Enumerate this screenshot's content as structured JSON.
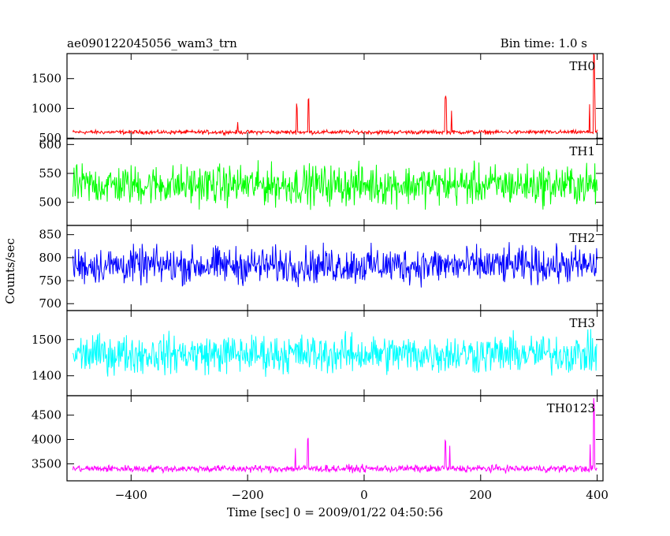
{
  "header": {
    "title": "ae090122045056_wam3_trn",
    "bin_time": "Bin time: 1.0 s"
  },
  "chart_data": {
    "type": "line",
    "xlabel": "Time [sec] 0 = 2009/01/22 04:50:56",
    "ylabel": "Counts/sec",
    "xlim": [
      -510,
      410
    ],
    "x_ticks": [
      -400,
      -200,
      0,
      200,
      400
    ],
    "x_tick_labels": [
      "−400",
      "−200",
      "0",
      "200",
      "400"
    ],
    "x_range": [
      -500,
      400
    ],
    "panels": [
      {
        "name": "TH0",
        "color": "#ff0000",
        "ylim": [
          490,
          1920
        ],
        "y_ticks": [
          500,
          1000,
          1500
        ],
        "baseline": 600,
        "noise": 25,
        "spikes": [
          [
            -217,
            770
          ],
          [
            -116,
            1080
          ],
          [
            -115,
            1000
          ],
          [
            -96,
            1150
          ],
          [
            -95,
            1160
          ],
          [
            139,
            1170
          ],
          [
            140,
            1210
          ],
          [
            141,
            1150
          ],
          [
            150,
            960
          ],
          [
            387,
            1070
          ],
          [
            394,
            1920
          ],
          [
            395,
            1890
          ],
          [
            396,
            1250
          ]
        ]
      },
      {
        "name": "TH1",
        "color": "#00ff00",
        "ylim": [
          460,
          610
        ],
        "y_ticks": [
          500,
          550,
          600
        ],
        "baseline": 530,
        "noise": 26,
        "spikes": []
      },
      {
        "name": "TH2",
        "color": "#0000ff",
        "ylim": [
          685,
          870
        ],
        "y_ticks": [
          700,
          750,
          800,
          850
        ],
        "baseline": 783,
        "noise": 30,
        "spikes": []
      },
      {
        "name": "TH3",
        "color": "#00ffff",
        "ylim": [
          1345,
          1580
        ],
        "y_ticks": [
          1400,
          1500
        ],
        "baseline": 1460,
        "noise": 40,
        "spikes": []
      },
      {
        "name": "TH0123",
        "color": "#ff00ff",
        "ylim": [
          3150,
          4900
        ],
        "y_ticks": [
          3500,
          4000,
          4500
        ],
        "baseline": 3400,
        "noise": 55,
        "spikes": [
          [
            -118,
            3820
          ],
          [
            -97,
            4000
          ],
          [
            -96,
            4030
          ],
          [
            139,
            3980
          ],
          [
            140,
            3960
          ],
          [
            147,
            3870
          ],
          [
            388,
            3900
          ],
          [
            394,
            4850
          ],
          [
            395,
            4700
          ]
        ]
      }
    ]
  }
}
